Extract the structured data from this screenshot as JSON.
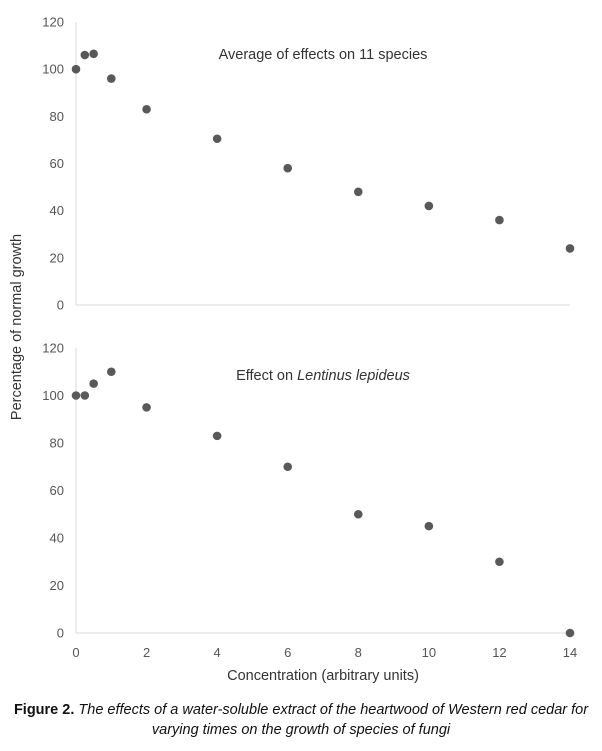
{
  "chart_data": [
    {
      "type": "scatter",
      "title": "Average of effects on 11 species",
      "title_segments": [
        {
          "text": "Average of effects on 11 species",
          "italic": false
        }
      ],
      "x": [
        0,
        0.25,
        0.5,
        1,
        2,
        4,
        6,
        8,
        10,
        12,
        14
      ],
      "y": [
        100,
        106,
        106.5,
        96,
        83,
        70.5,
        58,
        48,
        42,
        36,
        24
      ],
      "xlim": [
        0,
        14
      ],
      "ylim": [
        0,
        120
      ],
      "yticks": [
        0,
        20,
        40,
        60,
        80,
        100,
        120
      ],
      "grid": false,
      "marker_color": "#595959"
    },
    {
      "type": "scatter",
      "title": "Effect on Lentinus lepideus",
      "title_segments": [
        {
          "text": "Effect on ",
          "italic": false
        },
        {
          "text": "Lentinus lepideus",
          "italic": true
        }
      ],
      "x": [
        0,
        0.25,
        0.5,
        1,
        2,
        4,
        6,
        8,
        10,
        12,
        14
      ],
      "y": [
        100,
        100,
        105,
        110,
        95,
        83,
        70,
        50,
        45,
        30,
        0
      ],
      "xlim": [
        0,
        14
      ],
      "ylim": [
        0,
        120
      ],
      "yticks": [
        0,
        20,
        40,
        60,
        80,
        100,
        120
      ],
      "xticks": [
        0,
        2,
        4,
        6,
        8,
        10,
        12,
        14
      ],
      "grid": false,
      "marker_color": "#595959"
    }
  ],
  "axes": {
    "ylabel": "Percentage of normal growth",
    "xlabel": "Concentration (arbitrary units)"
  },
  "caption": {
    "label": "Figure 2.",
    "text": "The effects of a water-soluble extract of the heartwood of Western red cedar for varying times on the growth of species of fungi"
  }
}
